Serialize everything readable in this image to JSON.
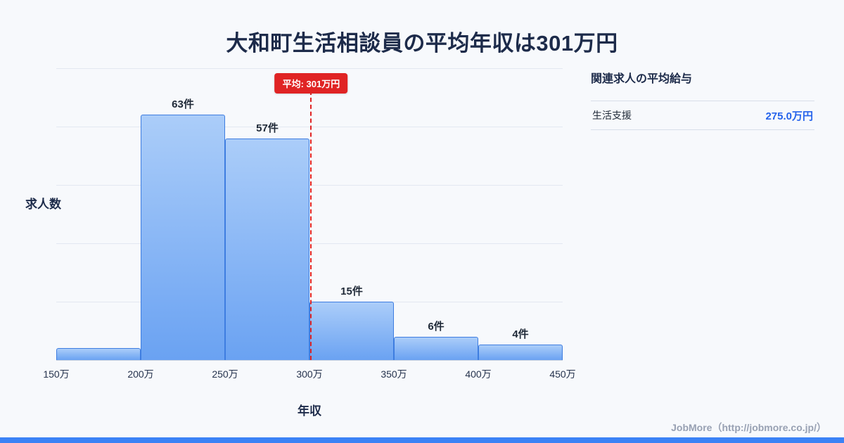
{
  "title": "大和町生活相談員の平均年収は301万円",
  "chart_data": {
    "type": "bar",
    "title": "大和町生活相談員の平均年収は301万円",
    "categories": [
      "150万-200万",
      "200万-250万",
      "250万-300万",
      "300万-350万",
      "350万-400万",
      "400万-450万"
    ],
    "values": [
      3,
      63,
      57,
      15,
      6,
      4
    ],
    "bar_labels": [
      "",
      "63件",
      "57件",
      "15件",
      "6件",
      "4件"
    ],
    "x_ticks": [
      "150万",
      "200万",
      "250万",
      "300万",
      "350万",
      "400万",
      "450万"
    ],
    "xlabel": "年収",
    "ylabel": "求人数",
    "x_range": [
      150,
      450
    ],
    "ylim": [
      0,
      75
    ],
    "grid": true,
    "legend": "none",
    "average_value": 301,
    "average_label": "平均: 301万円"
  },
  "sidebar": {
    "heading": "関連求人の平均給与",
    "rows": [
      {
        "label": "生活支援",
        "value": "275.0万円"
      }
    ]
  },
  "footer": {
    "credit": "JobMore（http://jobmore.co.jp/）"
  },
  "colors": {
    "accent": "#3b82f6",
    "title": "#1d2b4a",
    "bar_top": "#abcdf9",
    "bar_bottom": "#6aa2f2",
    "bar_border": "#3e7de0",
    "average_line": "#e02424",
    "value_blue": "#2563eb"
  }
}
